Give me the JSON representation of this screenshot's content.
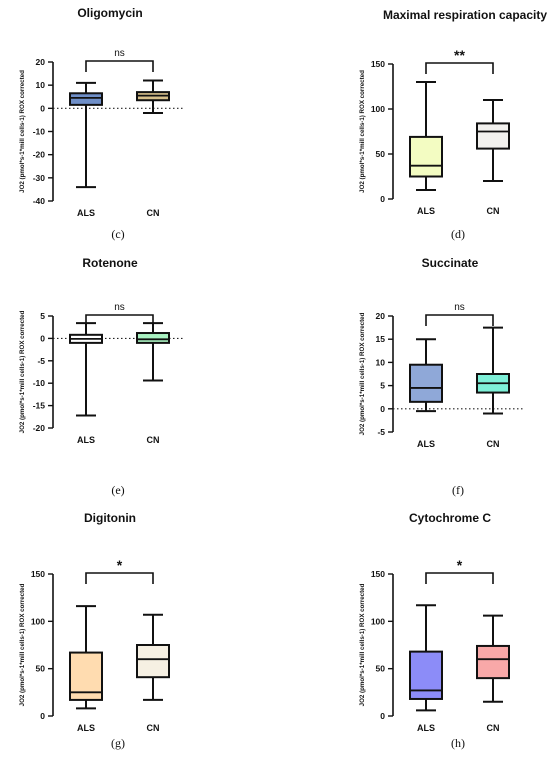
{
  "chart_data": [
    {
      "type": "box",
      "title": "Oligomycin",
      "ylabel": "JO2 (pmol*s-1*mill cells-1) ROX corrected",
      "ylim": [
        -40,
        20
      ],
      "yticks": [
        20,
        10,
        0,
        -10,
        -20,
        -30,
        -40
      ],
      "zero_line": true,
      "categories": [
        "ALS",
        "CN"
      ],
      "boxes": [
        {
          "category": "ALS",
          "min": -34,
          "q1": 1.5,
          "median": 4.5,
          "q3": 6.5,
          "max": 11,
          "color": "#6f8fc8"
        },
        {
          "category": "CN",
          "min": -2,
          "q1": 3.5,
          "median": 5.5,
          "q3": 7,
          "max": 12,
          "color": "#d6bf8a"
        }
      ],
      "significance": "ns",
      "caption": "(c)"
    },
    {
      "type": "box",
      "title": "Maximal respiration capacity",
      "ylabel": "JO2 (pmol*s-1*mill cells-1) ROX corrected",
      "ylim": [
        0,
        150
      ],
      "yticks": [
        150,
        100,
        50,
        0
      ],
      "zero_line": false,
      "categories": [
        "ALS",
        "CN"
      ],
      "boxes": [
        {
          "category": "ALS",
          "min": 10,
          "q1": 25,
          "median": 37,
          "q3": 69,
          "max": 130,
          "color": "#f3fcc2"
        },
        {
          "category": "CN",
          "min": 20,
          "q1": 56,
          "median": 75,
          "q3": 84,
          "max": 110,
          "color": "#f2f1ee"
        }
      ],
      "significance": "**",
      "caption": "(d)"
    },
    {
      "type": "box",
      "title": "Rotenone",
      "ylabel": "JO2 (pmol*s-1*mill cells-1) ROX corrected",
      "ylim": [
        -20,
        5
      ],
      "yticks": [
        5,
        0,
        -5,
        -10,
        -15,
        -20
      ],
      "zero_line": true,
      "categories": [
        "ALS",
        "CN"
      ],
      "boxes": [
        {
          "category": "ALS",
          "min": -17.2,
          "q1": -1,
          "median": -0.1,
          "q3": 0.8,
          "max": 3.4,
          "color": "#ffffff"
        },
        {
          "category": "CN",
          "min": -9.4,
          "q1": -1,
          "median": -0.2,
          "q3": 1.2,
          "max": 3.4,
          "color": "#aaf2c2"
        }
      ],
      "significance": "ns",
      "caption": "(e)"
    },
    {
      "type": "box",
      "title": "Succinate",
      "ylabel": "JO2 (pmol*s-1*mill cells-1) ROX corrected",
      "ylim": [
        -5,
        20
      ],
      "yticks": [
        20,
        15,
        10,
        5,
        0,
        -5
      ],
      "zero_line": true,
      "categories": [
        "ALS",
        "CN"
      ],
      "boxes": [
        {
          "category": "ALS",
          "min": -0.5,
          "q1": 1.5,
          "median": 4.5,
          "q3": 9.5,
          "max": 15,
          "color": "#8fa8d8"
        },
        {
          "category": "CN",
          "min": -1,
          "q1": 3.5,
          "median": 5.5,
          "q3": 7.5,
          "max": 17.5,
          "color": "#7ef0d8"
        }
      ],
      "significance": "ns",
      "caption": "(f)"
    },
    {
      "type": "box",
      "title": "Digitonin",
      "ylabel": "JO2 (pmol*s-1*mill cells-1) ROX corrected",
      "ylim": [
        0,
        150
      ],
      "yticks": [
        150,
        100,
        50,
        0
      ],
      "zero_line": false,
      "categories": [
        "ALS",
        "CN"
      ],
      "boxes": [
        {
          "category": "ALS",
          "min": 8,
          "q1": 17,
          "median": 25,
          "q3": 67,
          "max": 116,
          "color": "#ffdcb0"
        },
        {
          "category": "CN",
          "min": 17,
          "q1": 41,
          "median": 60,
          "q3": 75,
          "max": 107,
          "color": "#f6f0e3"
        }
      ],
      "significance": "*",
      "caption": "(g)"
    },
    {
      "type": "box",
      "title": "Cytochrome C",
      "ylabel": "JO2 (pmol*s-1*mill cells-1) ROX corrected",
      "ylim": [
        0,
        150
      ],
      "yticks": [
        150,
        100,
        50,
        0
      ],
      "zero_line": false,
      "categories": [
        "ALS",
        "CN"
      ],
      "boxes": [
        {
          "category": "ALS",
          "min": 6,
          "q1": 18,
          "median": 27,
          "q3": 68,
          "max": 117,
          "color": "#8c8cf8"
        },
        {
          "category": "CN",
          "min": 15,
          "q1": 40,
          "median": 60,
          "q3": 74,
          "max": 106,
          "color": "#f8a8a8"
        }
      ],
      "significance": "*",
      "caption": "(h)"
    }
  ]
}
